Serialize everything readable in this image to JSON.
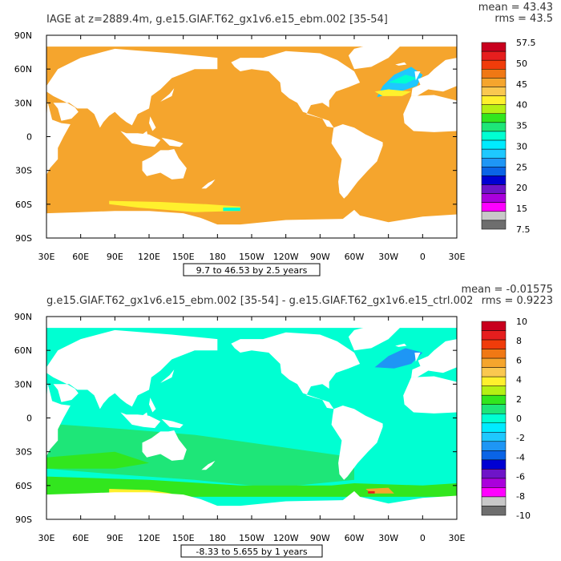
{
  "chart_data": [
    {
      "type": "heatmap",
      "title": "IAGE at z=2889.4m, g.e15.GIAF.T62_gx1v6.e15_ebm.002 [35-54]",
      "stats": {
        "mean": "mean = 43.43",
        "rms": "rms = 43.5"
      },
      "xlabel": "",
      "ylabel": "",
      "xticks": [
        "30E",
        "60E",
        "90E",
        "120E",
        "150E",
        "180",
        "150W",
        "120W",
        "90W",
        "60W",
        "30W",
        "0",
        "30E"
      ],
      "yticks": [
        "90N",
        "60N",
        "30N",
        "0",
        "30S",
        "60S",
        "90S"
      ],
      "range_note": "9.7 to 46.53 by 2.5 years",
      "colorbar": {
        "labels": [
          "57.5",
          "50",
          "45",
          "40",
          "35",
          "30",
          "25",
          "20",
          "15",
          "7.5"
        ],
        "colors": [
          "#c8001e",
          "#e61e1e",
          "#f03c0a",
          "#f07814",
          "#f5a52d",
          "#fac850",
          "#fff02d",
          "#b4f014",
          "#32e61e",
          "#1ee678",
          "#00ffd2",
          "#00ebff",
          "#1ec8ff",
          "#1e96f5",
          "#0a64e6",
          "#0000d2",
          "#6e14c8",
          "#aa00dc",
          "#ff00ff",
          "#c8c8c8",
          "#6e6e6e"
        ]
      },
      "ocean_color": "#f5a52d",
      "accents": [
        {
          "region": "North Atlantic subpolar",
          "colors": [
            "#1ec8ff",
            "#00ebff",
            "#00ffd2",
            "#fff02d"
          ]
        },
        {
          "region": "Southern Ocean band",
          "colors": [
            "#fff02d",
            "#fac850",
            "#00ffd2"
          ]
        }
      ]
    },
    {
      "type": "heatmap",
      "title": "g.e15.GIAF.T62_gx1v6.e15_ebm.002 [35-54] - g.e15.GIAF.T62_gx1v6.e15_ctrl.002",
      "stats": {
        "mean": "mean = -0.01575",
        "rms": "rms = 0.9223"
      },
      "xlabel": "",
      "ylabel": "",
      "xticks": [
        "30E",
        "60E",
        "90E",
        "120E",
        "150E",
        "180",
        "150W",
        "120W",
        "90W",
        "60W",
        "30W",
        "0",
        "30E"
      ],
      "yticks": [
        "90N",
        "60N",
        "30N",
        "0",
        "30S",
        "60S",
        "90S"
      ],
      "range_note": "-8.33 to 5.655 by 1 years",
      "colorbar": {
        "labels": [
          "10",
          "8",
          "6",
          "4",
          "2",
          "0",
          "-2",
          "-4",
          "-6",
          "-8",
          "-10"
        ],
        "colors": [
          "#c8001e",
          "#e61e1e",
          "#f03c0a",
          "#f07814",
          "#f5a52d",
          "#fac850",
          "#fff02d",
          "#b4f014",
          "#32e61e",
          "#1ee678",
          "#00ffd2",
          "#00ebff",
          "#1ec8ff",
          "#1e96f5",
          "#0a64e6",
          "#0000d2",
          "#6e14c8",
          "#aa00dc",
          "#ff00ff",
          "#c8c8c8",
          "#6e6e6e"
        ]
      },
      "ocean_color": "#00ffd2",
      "accents": [
        {
          "region": "North Atlantic subpolar",
          "colors": [
            "#1e96f5",
            "#1ec8ff"
          ]
        },
        {
          "region": "Indian/Southern Ocean",
          "colors": [
            "#32e61e",
            "#1ee678"
          ]
        },
        {
          "region": "Ross/Weddell shelf",
          "colors": [
            "#fff02d",
            "#f5a52d",
            "#e61e1e"
          ]
        }
      ]
    }
  ]
}
